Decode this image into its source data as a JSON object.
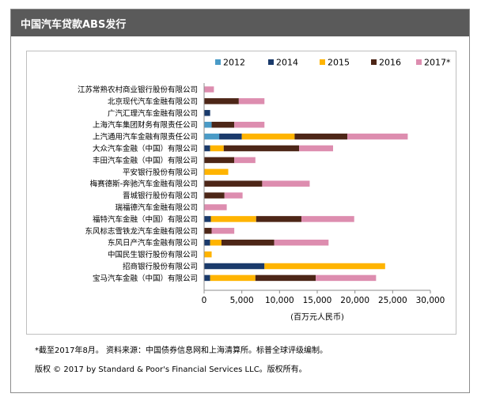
{
  "header": {
    "title": "中国汽车贷款ABS发行"
  },
  "footer": {
    "note": "*截至2017年8月。 资料来源：中国债券信息网和上海清算所。标普全球评级编制。",
    "copyright": "版权 © 2017 by Standard & Poor's Financial Services LLC。版权所有。"
  },
  "colors": {
    "s2012": "#4a9bc7",
    "s2014": "#1a3a6b",
    "s2015": "#ffb400",
    "s2016": "#4d2617",
    "s2017": "#dd8daf",
    "grid": "#d9d9d9"
  },
  "chart_data": {
    "type": "bar",
    "orientation": "horizontal",
    "stacked": true,
    "xlabel": "(百万元人民币)",
    "xlim": [
      0,
      30000
    ],
    "xticks": [
      0,
      5000,
      10000,
      15000,
      20000,
      25000,
      30000
    ],
    "xtick_labels": [
      "0",
      "5,000",
      "10,000",
      "15,000",
      "20,000",
      "25,000",
      "30,000"
    ],
    "grid": false,
    "legend": "top-right",
    "categories": [
      "江苏常熟农村商业银行股份有限公司",
      "北京现代汽车金融有限公司",
      "广汽汇理汽车金融有限公司",
      "上海汽车集团财务有限责任公司",
      "上汽通用汽车金融有限责任公司",
      "大众汽车金融（中国）有限公司",
      "丰田汽车金融（中国）有限公司",
      "平安银行股份有限公司",
      "梅赛德斯-奔驰汽车金融有限公司",
      "晋城银行股份有限公司",
      "瑞福德汽车金融有限公司",
      "福特汽车金融（中国）有限公司",
      "东风标志雪铁龙汽车金融有限公司",
      "东风日产汽车金融有限公司",
      "中国民生银行股份有限公司",
      "招商银行股份有限公司",
      "宝马汽车金融（中国）有限公司"
    ],
    "series": [
      {
        "name": "2012",
        "color_key": "s2012",
        "values": [
          0,
          0,
          0,
          1000,
          2000,
          0,
          0,
          0,
          0,
          0,
          0,
          0,
          0,
          0,
          0,
          0,
          0
        ]
      },
      {
        "name": "2014",
        "color_key": "s2014",
        "values": [
          0,
          0,
          800,
          0,
          3000,
          800,
          0,
          0,
          0,
          0,
          0,
          900,
          0,
          800,
          0,
          8000,
          800
        ]
      },
      {
        "name": "2015",
        "color_key": "s2015",
        "values": [
          0,
          0,
          0,
          0,
          7000,
          1800,
          0,
          3200,
          0,
          0,
          0,
          6000,
          0,
          1500,
          1000,
          16000,
          6000
        ]
      },
      {
        "name": "2016",
        "color_key": "s2016",
        "values": [
          0,
          4600,
          0,
          3000,
          7000,
          10000,
          4000,
          0,
          7700,
          2700,
          0,
          6000,
          1000,
          7000,
          0,
          0,
          8000
        ]
      },
      {
        "name": "2017*",
        "color_key": "s2017",
        "values": [
          1300,
          3400,
          0,
          4000,
          8000,
          4500,
          2800,
          0,
          6300,
          2400,
          3000,
          7000,
          3000,
          7200,
          0,
          0,
          8000
        ]
      }
    ]
  }
}
